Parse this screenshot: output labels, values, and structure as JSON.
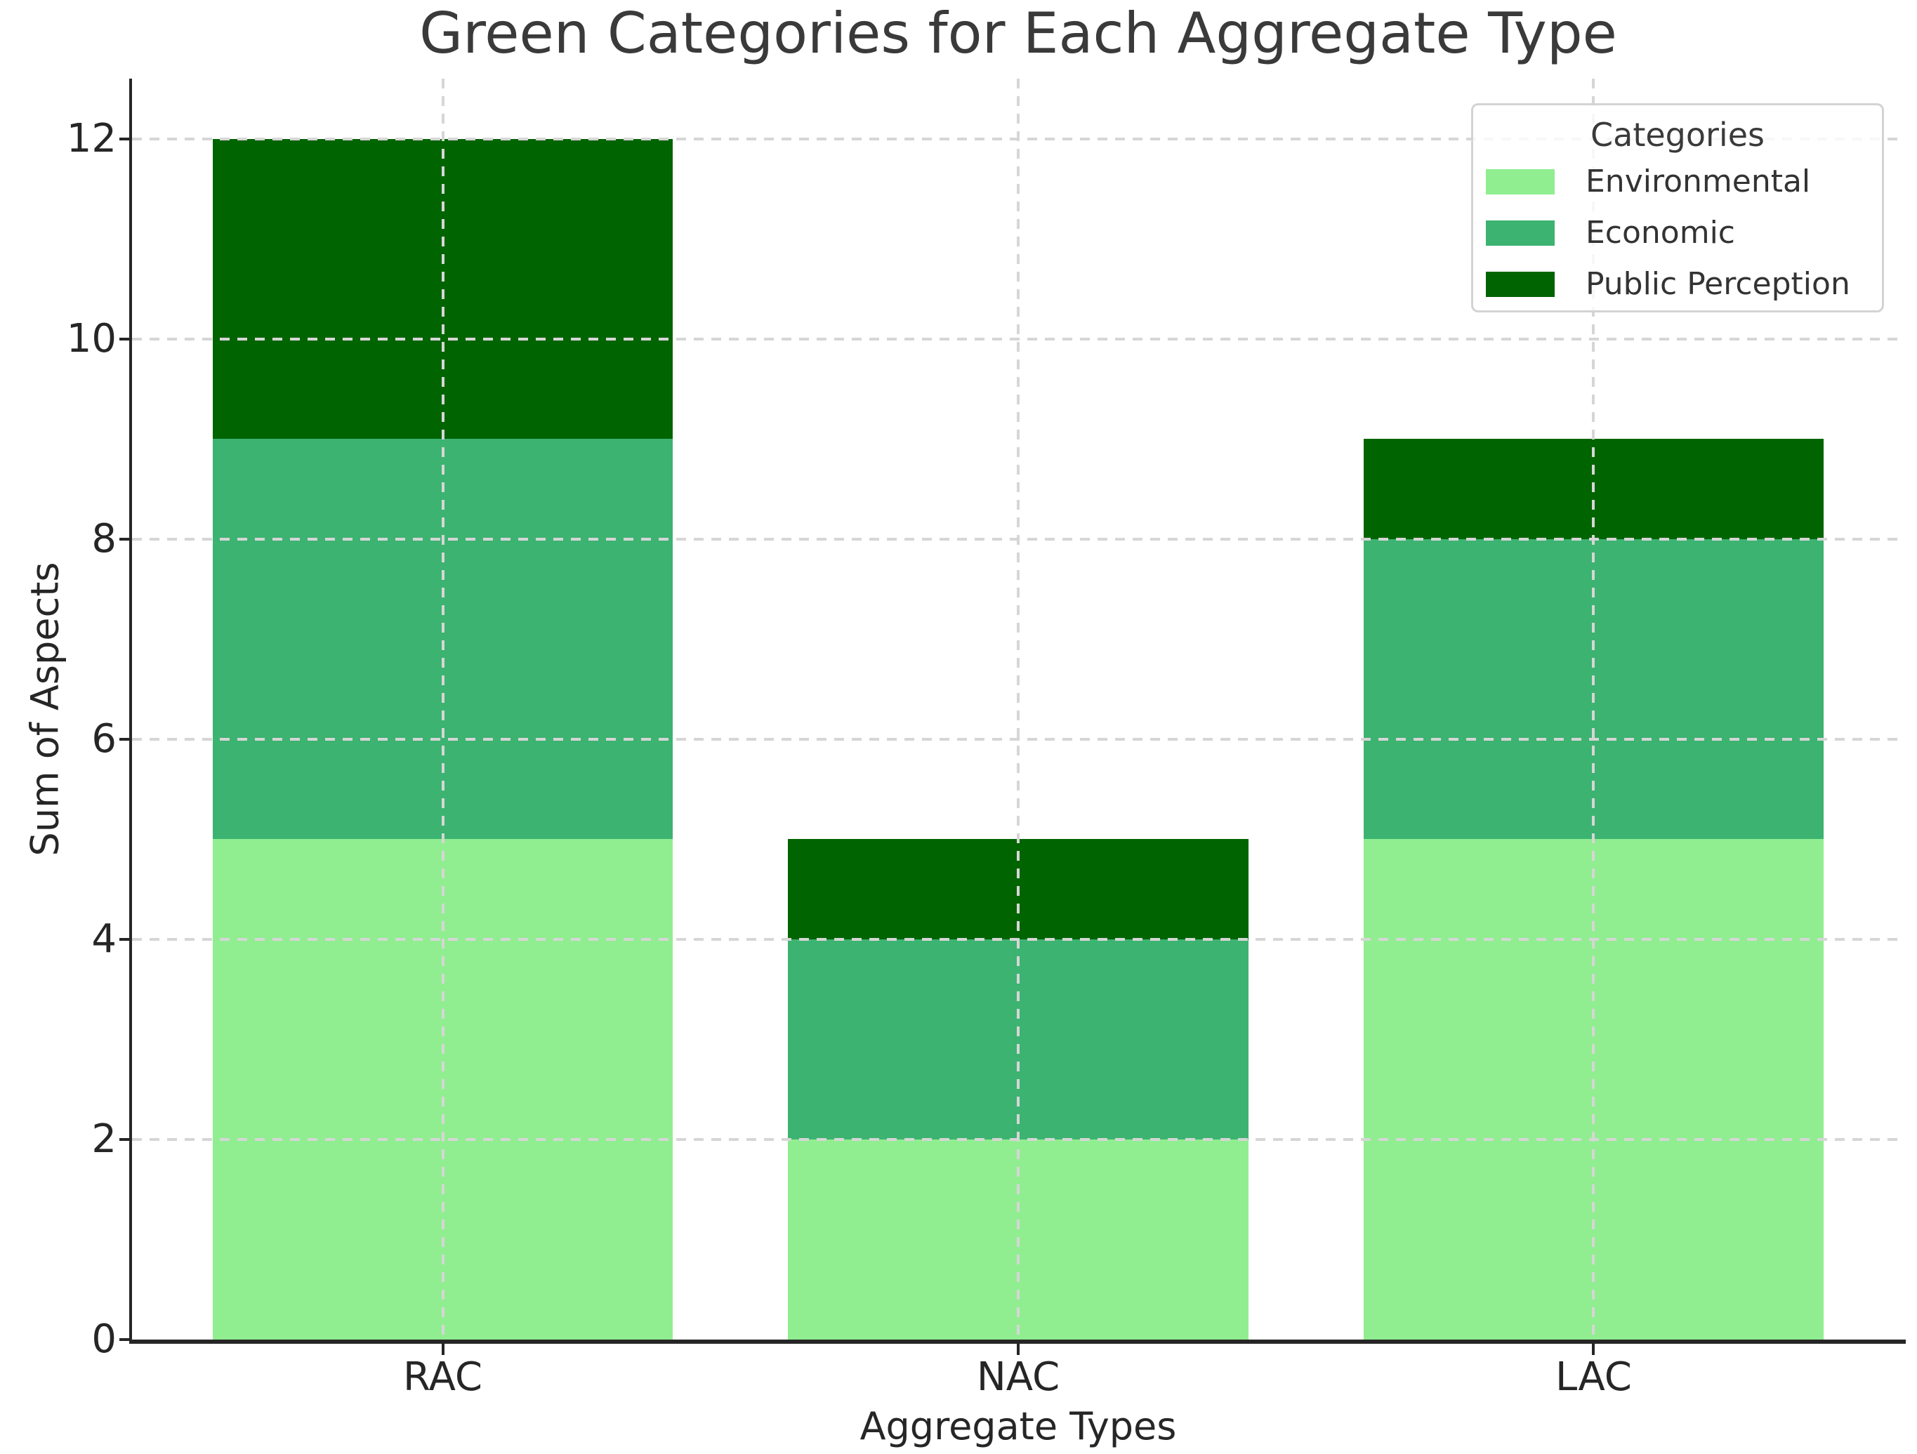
{
  "title": "Green Categories for Each Aggregate Type",
  "axes": {
    "x_label": "Aggregate Types",
    "y_label": "Sum of Aspects",
    "y_ticks": [
      "0",
      "2",
      "4",
      "6",
      "8",
      "10",
      "12"
    ]
  },
  "legend": {
    "title": "Categories",
    "items": [
      {
        "label": "Environmental",
        "color": "#90EE90"
      },
      {
        "label": "Economic",
        "color": "#3CB371"
      },
      {
        "label": "Public Perception",
        "color": "#006400"
      }
    ]
  },
  "chart_data": {
    "type": "bar",
    "stacked": true,
    "categories": [
      "RAC",
      "NAC",
      "LAC"
    ],
    "series": [
      {
        "name": "Environmental",
        "color": "#90EE90",
        "values": [
          5,
          2,
          5
        ]
      },
      {
        "name": "Economic",
        "color": "#3CB371",
        "values": [
          4,
          2,
          3
        ]
      },
      {
        "name": "Public Perception",
        "color": "#006400",
        "values": [
          3,
          1,
          1
        ]
      }
    ],
    "totals": [
      12,
      5,
      9
    ],
    "title": "Green Categories for Each Aggregate Type",
    "xlabel": "Aggregate Types",
    "ylabel": "Sum of Aspects",
    "ylim": [
      0,
      12.6
    ],
    "yticks": [
      0,
      2,
      4,
      6,
      8,
      10,
      12
    ],
    "grid": true,
    "grid_style": "dashed",
    "grid_on_top": true,
    "legend_title": "Categories",
    "legend_position": "upper right"
  },
  "colors": {
    "text": "#262626",
    "title_text": "#3a3a3a",
    "grid": "#d6d6d6",
    "spine": "#262626",
    "legend_border": "#d3d3d3"
  }
}
